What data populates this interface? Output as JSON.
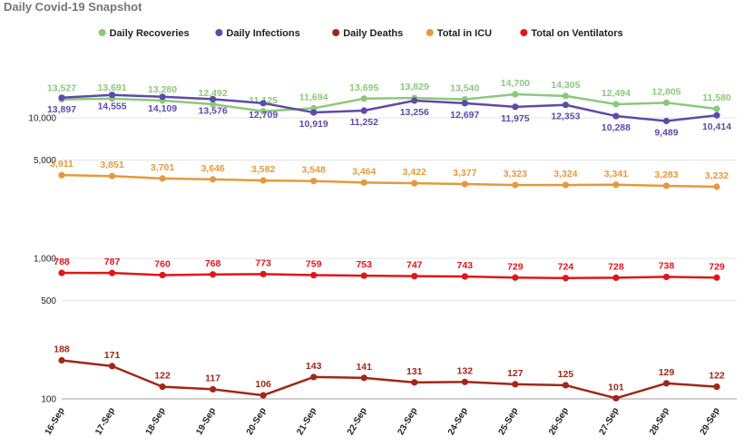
{
  "chart_data": {
    "type": "line",
    "title": "Daily Covid-19 Snapshot",
    "x": [
      "16-Sep",
      "17-Sep",
      "18-Sep",
      "19-Sep",
      "20-Sep",
      "21-Sep",
      "22-Sep",
      "23-Sep",
      "24-Sep",
      "25-Sep",
      "26-Sep",
      "27-Sep",
      "28-Sep",
      "29-Sep"
    ],
    "y_scale": "log",
    "ylim": [
      100,
      30000
    ],
    "y_ticks": [
      100,
      500,
      1000,
      5000,
      10000
    ],
    "y_tick_labels": [
      "100",
      "500",
      "1,000",
      "5,000",
      "10,000"
    ],
    "grid": true,
    "legend": "top-center",
    "series": [
      {
        "name": "Daily Recoveries",
        "color": "#8bc97a",
        "values": [
          13527,
          13691,
          13280,
          12492,
          11125,
          11694,
          13695,
          13829,
          13540,
          14700,
          14305,
          12494,
          12805,
          11580
        ],
        "label_position": "above"
      },
      {
        "name": "Daily Infections",
        "color": "#5e4aa8",
        "values": [
          13897,
          14555,
          14109,
          13576,
          12709,
          10919,
          11252,
          13256,
          12697,
          11975,
          12353,
          10288,
          9489,
          10414
        ],
        "label_position": "below"
      },
      {
        "name": "Daily Deaths",
        "color": "#a02718",
        "values": [
          188,
          171,
          122,
          117,
          106,
          143,
          141,
          131,
          132,
          127,
          125,
          101,
          129,
          122
        ],
        "label_position": "above"
      },
      {
        "name": "Total in ICU",
        "color": "#e49a3c",
        "values": [
          3911,
          3851,
          3701,
          3646,
          3582,
          3548,
          3464,
          3422,
          3377,
          3323,
          3324,
          3341,
          3283,
          3232
        ],
        "label_position": "above"
      },
      {
        "name": "Total on Ventilators",
        "color": "#e0161b",
        "values": [
          788,
          787,
          760,
          768,
          773,
          759,
          753,
          747,
          743,
          729,
          724,
          728,
          738,
          729
        ],
        "label_position": "above"
      }
    ]
  }
}
